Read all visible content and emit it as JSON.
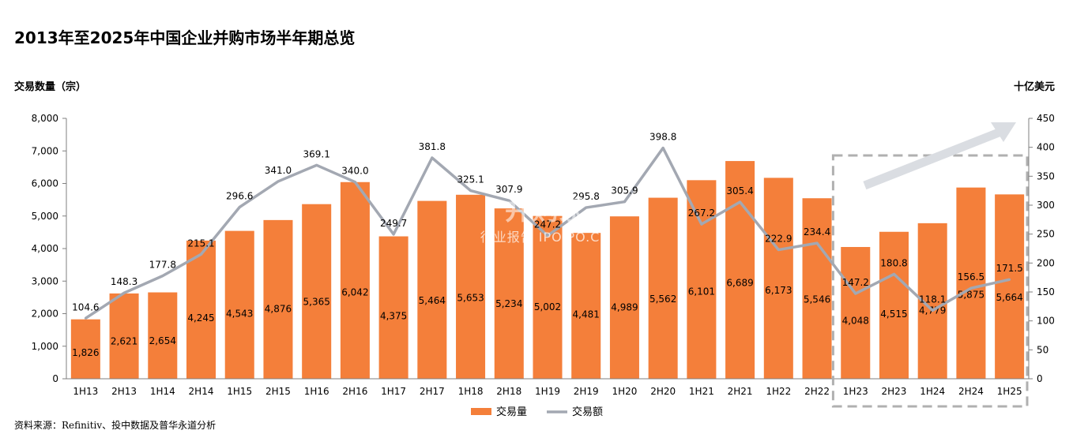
{
  "title": "2013年至2025年中国企业并购市场半年期总览",
  "y_left_label": "交易数量（宗）",
  "y_right_label": "十亿美元",
  "source": "资料来源：Refinitiv、投中数据及普华永道分析",
  "watermark": {
    "main": "并购家",
    "sub": "行业报告 IPOIPO.CN"
  },
  "colors": {
    "bar": "#F47F3A",
    "line": "#A3A8B2",
    "highlight_box": "#B0B0B0",
    "arrow": "#DADDE2"
  },
  "chart_data": {
    "type": "bar",
    "categories": [
      "1H13",
      "2H13",
      "1H14",
      "2H14",
      "1H15",
      "2H15",
      "1H16",
      "2H16",
      "1H17",
      "2H17",
      "1H18",
      "2H18",
      "1H19",
      "2H19",
      "1H20",
      "2H20",
      "1H21",
      "2H21",
      "1H22",
      "2H22",
      "1H23",
      "2H23",
      "1H24",
      "2H24",
      "1H25"
    ],
    "series": [
      {
        "name": "交易量",
        "type": "bar",
        "axis": "left",
        "values": [
          1826,
          2621,
          2654,
          4245,
          4543,
          4876,
          5365,
          6042,
          4375,
          5464,
          5653,
          5234,
          5002,
          4481,
          4989,
          5562,
          6101,
          6689,
          6173,
          5546,
          4048,
          4515,
          4779,
          5875,
          5664
        ],
        "labels": [
          "1,826",
          "2,621",
          "2,654",
          "4,245",
          "4,543",
          "4,876",
          "5,365",
          "6,042",
          "4,375",
          "5,464",
          "5,653",
          "5,234",
          "5,002",
          "4,481",
          "4,989",
          "5,562",
          "6,101",
          "6,689",
          "6,173",
          "5,546",
          "4,048",
          "4,515",
          "4,779",
          "5,875",
          "5,664"
        ]
      },
      {
        "name": "交易额",
        "type": "line",
        "axis": "right",
        "values": [
          104.6,
          148.3,
          177.8,
          215.1,
          296.6,
          341.0,
          369.1,
          340.0,
          249.7,
          381.8,
          325.1,
          307.9,
          247.2,
          295.8,
          305.9,
          398.8,
          267.2,
          305.4,
          222.9,
          234.4,
          147.2,
          180.8,
          118.1,
          156.5,
          171.5
        ],
        "labels": [
          "104.6",
          "148.3",
          "177.8",
          "215.1",
          "296.6",
          "341.0",
          "369.1",
          "340.0",
          "249.7",
          "381.8",
          "325.1",
          "307.9",
          "247.2",
          "295.8",
          "305.9",
          "398.8",
          "267.2",
          "305.4",
          "222.9",
          "234.4",
          "147.2",
          "180.8",
          "118.1",
          "156.5",
          "171.5"
        ]
      }
    ],
    "y_left": {
      "min": 0,
      "max": 8000,
      "ticks": [
        "0",
        "1,000",
        "2,000",
        "3,000",
        "4,000",
        "5,000",
        "6,000",
        "7,000",
        "8,000"
      ]
    },
    "y_right": {
      "min": 0,
      "max": 450,
      "ticks": [
        "0",
        "50",
        "100",
        "150",
        "200",
        "250",
        "300",
        "350",
        "400",
        "450"
      ]
    },
    "legend": {
      "position": "bottom",
      "items": [
        "交易量",
        "交易额"
      ]
    },
    "grid": false,
    "highlight": {
      "from": "1H23",
      "to": "1H25",
      "trend": "up"
    }
  }
}
